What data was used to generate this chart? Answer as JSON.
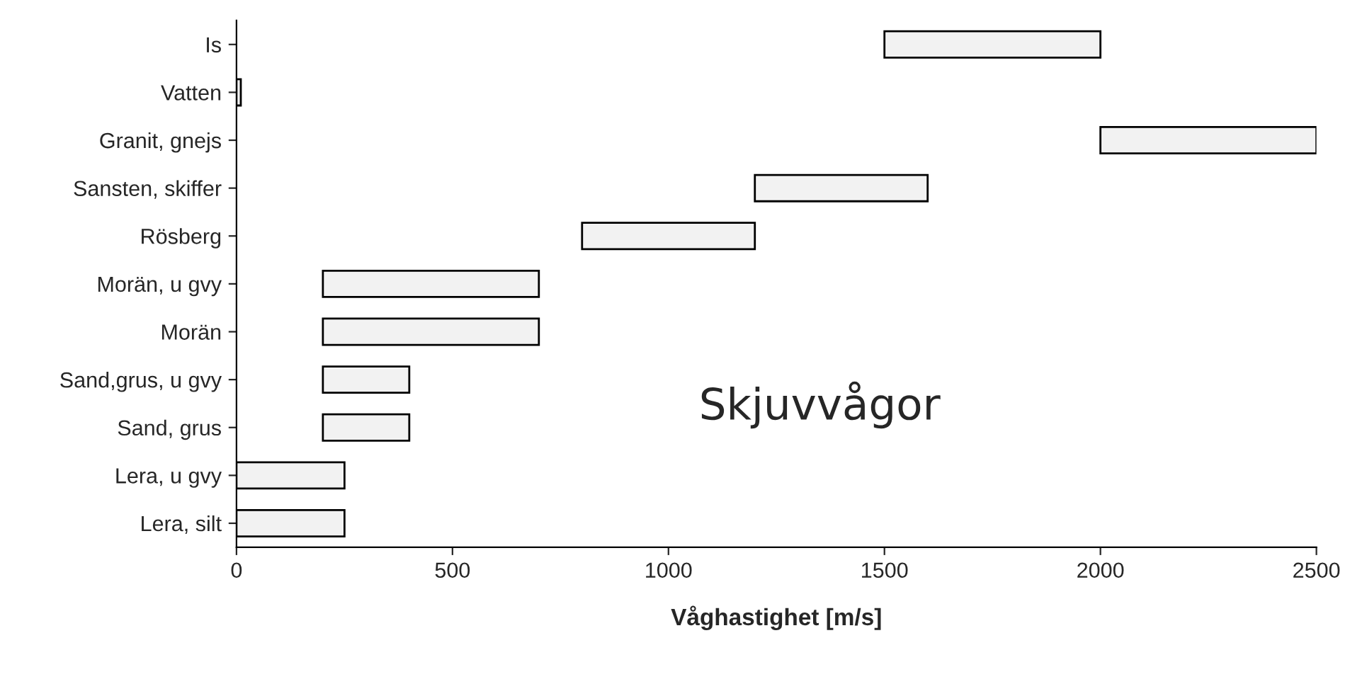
{
  "chart_data": {
    "type": "bar",
    "orientation": "horizontal",
    "xlabel": "Våghastighet [m/s]",
    "categories": [
      "Is",
      "Vatten",
      "Granit, gnejs",
      "Sansten, skiffer",
      "Rösberg",
      "Morän, u gvy",
      "Morän",
      "Sand,grus, u gvy",
      "Sand, grus",
      "Lera, u gvy",
      "Lera, silt"
    ],
    "base": [
      1500,
      0,
      2000,
      1200,
      800,
      200,
      200,
      200,
      200,
      0,
      0
    ],
    "values": [
      500,
      10,
      500,
      400,
      400,
      500,
      500,
      200,
      200,
      250,
      250
    ],
    "color": "#f2f2f2",
    "xlim": [
      0,
      2500
    ],
    "xticks": [
      0,
      500,
      1000,
      1500,
      2000,
      2500
    ],
    "grid": false,
    "annotations": [
      "Skjuvvågor"
    ]
  }
}
